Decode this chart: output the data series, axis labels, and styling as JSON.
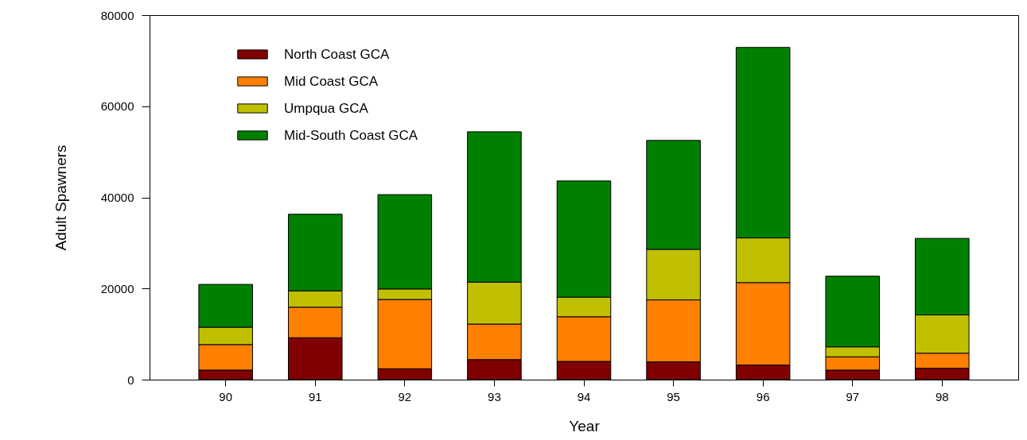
{
  "chart_data": {
    "type": "bar",
    "stacked": true,
    "xlabel": "Year",
    "ylabel": "Adult Spawners",
    "categories": [
      "90",
      "91",
      "92",
      "93",
      "94",
      "95",
      "96",
      "97",
      "98"
    ],
    "series": [
      {
        "name": "North Coast GCA",
        "color": "#800000",
        "values": [
          2100,
          9200,
          2400,
          4400,
          4000,
          3900,
          3200,
          2100,
          2500
        ]
      },
      {
        "name": "Mid Coast GCA",
        "color": "#ff8000",
        "values": [
          5600,
          6700,
          15200,
          7800,
          9800,
          13600,
          18100,
          2900,
          3300
        ]
      },
      {
        "name": "Umpqua GCA",
        "color": "#c0c000",
        "values": [
          3800,
          3600,
          2300,
          9200,
          4300,
          11100,
          9800,
          2200,
          8400
        ]
      },
      {
        "name": "Mid-South Coast GCA",
        "color": "#008000",
        "values": [
          9400,
          16800,
          20700,
          33000,
          25500,
          23900,
          41800,
          15500,
          16800
        ]
      }
    ],
    "ylim": [
      0,
      80000
    ],
    "yticks": [
      0,
      20000,
      40000,
      60000,
      80000
    ],
    "legend": "top left"
  }
}
